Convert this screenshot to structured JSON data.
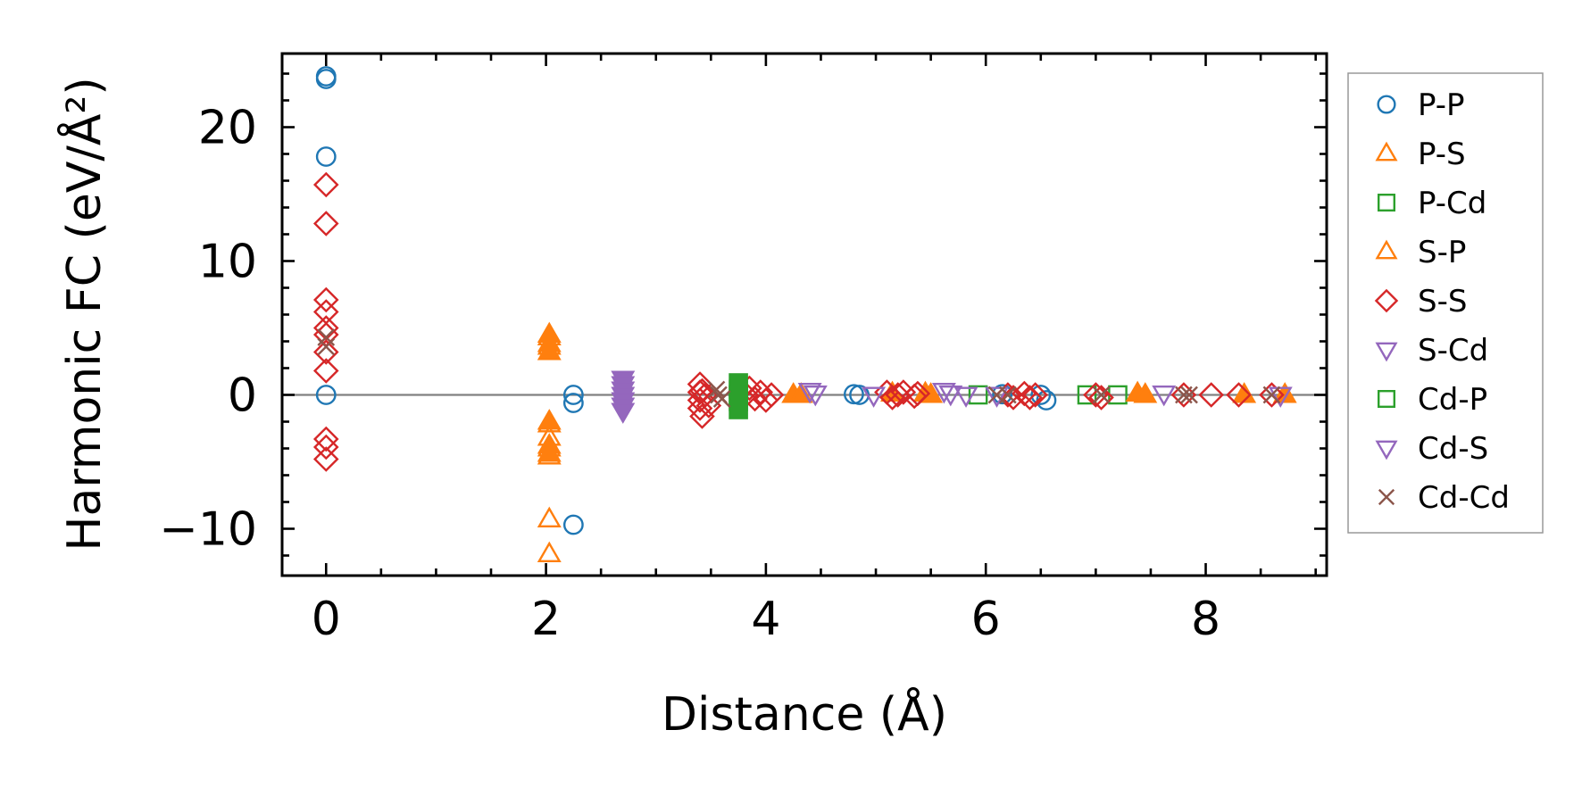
{
  "chart_data": {
    "type": "scatter",
    "xlabel": "Distance (Å)",
    "ylabel": "Harmonic FC (eV/Å²)",
    "xlim": [
      -0.4,
      9.1
    ],
    "ylim": [
      -13.5,
      25.5
    ],
    "xticks": [
      0,
      2,
      4,
      6,
      8
    ],
    "xtick_labels": [
      "0",
      "2",
      "4",
      "6",
      "8"
    ],
    "yticks": [
      -10,
      0,
      10,
      20
    ],
    "ytick_labels": [
      "−10",
      "0",
      "10",
      "20"
    ],
    "zero_line": true,
    "legend_position": "right, outside",
    "series": [
      {
        "name": "P-P",
        "marker": "circle",
        "color": "#1f77b4",
        "filled": false,
        "x": [
          0,
          0,
          0,
          0,
          2.25,
          2.25,
          2.25,
          4.8,
          4.85,
          6.15,
          6.5,
          6.55
        ],
        "y": [
          23.8,
          23.6,
          17.8,
          0.0,
          0.0,
          -0.6,
          -9.7,
          0.05,
          0.0,
          0.05,
          0.0,
          -0.4
        ]
      },
      {
        "name": "P-S",
        "marker": "triangle-up",
        "color": "#ff7f0e",
        "filled": false,
        "x": [
          2.03,
          2.03,
          2.03,
          2.03,
          2.03,
          2.03,
          2.03,
          2.03
        ],
        "y": [
          4.3,
          3.6,
          -2.2,
          -3.2,
          -4.0,
          -4.6,
          -9.3,
          -11.9
        ]
      },
      {
        "name": "P-Cd",
        "marker": "square",
        "color": "#2ca02c",
        "filled": false,
        "x": [
          5.93,
          6.92,
          7.2
        ],
        "y": [
          0.0,
          0.0,
          0.0
        ]
      },
      {
        "name": "S-P",
        "marker": "triangle-up",
        "color": "#ff7f0e",
        "filled": true,
        "x": [
          2.03,
          2.03,
          2.03,
          2.03,
          2.03,
          2.03,
          4.25,
          4.32,
          5.15,
          5.45,
          5.5,
          7.38,
          7.45,
          8.35,
          8.72
        ],
        "y": [
          4.5,
          3.8,
          3.2,
          -2.0,
          -3.8,
          -4.4,
          0.0,
          0.0,
          0.1,
          0.1,
          0.0,
          0.1,
          0.0,
          0.0,
          0.0
        ]
      },
      {
        "name": "S-S",
        "marker": "diamond",
        "color": "#d62728",
        "filled": false,
        "x": [
          0,
          0,
          0,
          0,
          0,
          0,
          0,
          0,
          0,
          0,
          0,
          3.4,
          3.4,
          3.4,
          3.4,
          3.42,
          3.42,
          3.45,
          3.48,
          3.82,
          3.85,
          3.9,
          3.95,
          4.0,
          4.05,
          5.1,
          5.15,
          5.2,
          5.25,
          5.35,
          5.38,
          6.2,
          6.25,
          6.35,
          6.4,
          6.45,
          7.0,
          7.05,
          7.8,
          8.05,
          8.3,
          8.6
        ],
        "y": [
          15.7,
          12.8,
          7.1,
          6.2,
          5.0,
          4.5,
          3.2,
          1.8,
          -3.3,
          -3.9,
          -4.8,
          0.8,
          0.2,
          -0.4,
          -1.0,
          0.3,
          -1.6,
          0.0,
          -0.8,
          0.0,
          0.5,
          -0.3,
          0.2,
          -0.4,
          0.0,
          0.2,
          -0.2,
          0.0,
          0.2,
          -0.1,
          0.1,
          0.0,
          -0.2,
          0.1,
          -0.2,
          0.0,
          0.0,
          -0.2,
          0.0,
          0.0,
          0.0,
          0.0
        ]
      },
      {
        "name": "S-Cd",
        "marker": "triangle-down",
        "color": "#9467bd",
        "filled": true,
        "x": [
          2.7,
          2.7,
          2.7,
          2.7,
          2.7,
          2.7,
          2.7
        ],
        "y": [
          1.2,
          0.8,
          0.4,
          0.0,
          -0.4,
          -0.8,
          -1.2
        ]
      },
      {
        "name": "Cd-P",
        "marker": "square",
        "color": "#2ca02c",
        "filled": true,
        "x": [
          3.75,
          3.75,
          3.75,
          3.75,
          3.75
        ],
        "y": [
          0.9,
          0.4,
          0.0,
          -0.5,
          -1.1
        ]
      },
      {
        "name": "Cd-S",
        "marker": "triangle-down",
        "color": "#9467bd",
        "filled": false,
        "x": [
          4.4,
          4.45,
          4.98,
          5.62,
          5.68,
          5.82,
          6.1,
          7.62,
          8.68
        ],
        "y": [
          0.3,
          0.1,
          0.0,
          0.3,
          0.1,
          0.0,
          0.0,
          0.1,
          0.0
        ]
      },
      {
        "name": "Cd-Cd",
        "marker": "x",
        "color": "#8c564b",
        "filled": false,
        "x": [
          0,
          0,
          3.55,
          3.57,
          3.6,
          6.1,
          6.2,
          7.05,
          7.8,
          7.85,
          8.6
        ],
        "y": [
          4.3,
          3.6,
          0.4,
          0.0,
          -0.3,
          0.0,
          0.0,
          0.0,
          0.0,
          0.0,
          0.0
        ]
      }
    ],
    "legend": [
      {
        "label": "P-P",
        "marker": "circle",
        "color": "#1f77b4"
      },
      {
        "label": "P-S",
        "marker": "triangle-up",
        "color": "#ff7f0e"
      },
      {
        "label": "P-Cd",
        "marker": "square",
        "color": "#2ca02c"
      },
      {
        "label": "S-P",
        "marker": "triangle-up",
        "color": "#ff7f0e"
      },
      {
        "label": "S-S",
        "marker": "diamond",
        "color": "#d62728"
      },
      {
        "label": "S-Cd",
        "marker": "triangle-down",
        "color": "#9467bd"
      },
      {
        "label": "Cd-P",
        "marker": "square",
        "color": "#2ca02c"
      },
      {
        "label": "Cd-S",
        "marker": "triangle-down",
        "color": "#9467bd"
      },
      {
        "label": "Cd-Cd",
        "marker": "x",
        "color": "#8c564b"
      }
    ]
  }
}
